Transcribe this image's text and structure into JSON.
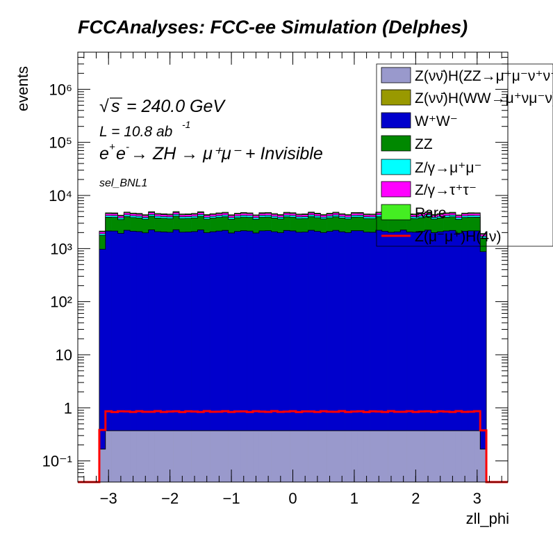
{
  "chart_data": {
    "type": "histogram-stacked",
    "title": "FCCAnalyses: FCC-ee Simulation (Delphes)",
    "xlabel": "zll_phi",
    "ylabel": "events",
    "xlim": [
      -3.5,
      3.5
    ],
    "ylim": [
      0.04,
      5000000
    ],
    "log_y": true,
    "grid": false,
    "legend_placement": "top-right",
    "annotations": {
      "sqrt_s": "= 240.0 GeV",
      "lumi": "L = 10.8 ab",
      "lumi_exp": "-1",
      "process": "→ ZH → μ⁺μ⁻ + Invisible",
      "selection": "sel_BNL1"
    },
    "x_ticks": [
      -3,
      -2,
      -1,
      0,
      1,
      2,
      3
    ],
    "x_tick_labels": [
      "−3",
      "−2",
      "−1",
      "0",
      "1",
      "2",
      "3"
    ],
    "y_tick_labels": [
      "10⁻¹",
      "1",
      "10",
      "10²",
      "10³",
      "10⁴",
      "10⁵",
      "10⁶"
    ],
    "bins": {
      "start": -3.15,
      "width": 0.1,
      "count": 63,
      "edge_scale": 0.45
    },
    "series": [
      {
        "name": "Z(νν̄)H(ZZ→μ⁺μ⁻ν⁺ν⁻)",
        "color": "#9999cc",
        "value": 0.37
      },
      {
        "name": "Z(νν̄)H(WW→μ⁺νμ⁻ν)",
        "color": "#999900",
        "value": 0.001
      },
      {
        "name": "W⁺W⁻",
        "color": "#0000cc",
        "value": 2100
      },
      {
        "name": "ZZ",
        "color": "#008800",
        "value": 1700
      },
      {
        "name": "Z/γ→μ⁺μ⁻",
        "color": "#00ffff",
        "value": 290
      },
      {
        "name": "Z/γ→τ⁺τ⁻",
        "color": "#ff00ff",
        "value": 370
      },
      {
        "name": "Rare",
        "color": "#44ee22",
        "value": 158
      }
    ],
    "signal": {
      "name": "Z(μ⁻μ⁺)H(4ν)",
      "color": "#ff0000",
      "value": 0.85
    }
  }
}
